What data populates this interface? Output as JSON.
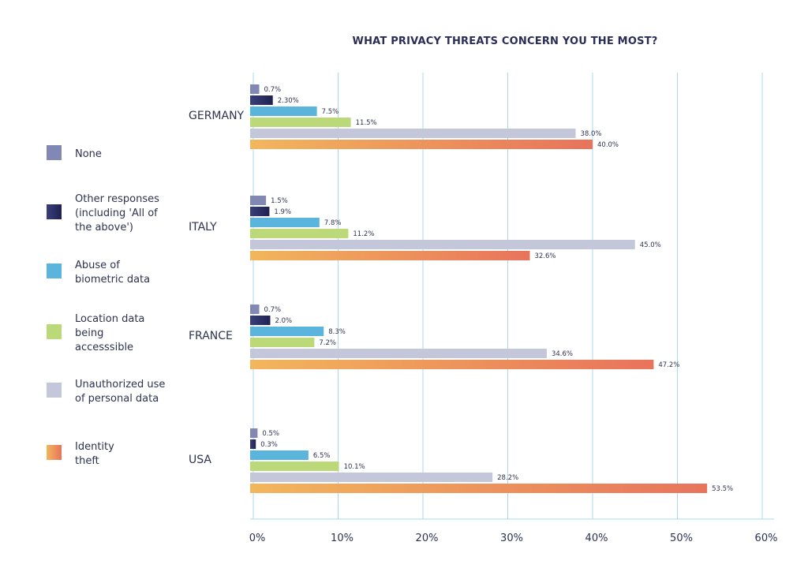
{
  "chart_data": {
    "type": "bar",
    "orientation": "horizontal",
    "title": "WHAT PRIVACY THREATS CONCERN YOU THE MOST?",
    "xlabel": "",
    "ylabel": "",
    "xlim": [
      0,
      60
    ],
    "x_ticks": [
      0,
      10,
      20,
      30,
      40,
      50,
      60
    ],
    "x_tick_labels": [
      "0%",
      "10%",
      "20%",
      "30%",
      "40%",
      "50%",
      "60%"
    ],
    "grid": "vertical",
    "legend_position": "left",
    "categories": [
      "GERMANY",
      "ITALY",
      "FRANCE",
      "USA"
    ],
    "series": [
      {
        "name": "None",
        "legend_lines": [
          "None"
        ],
        "color": "#8088b3",
        "values": [
          0.7,
          1.5,
          0.7,
          0.5
        ],
        "labels": [
          "0.7%",
          "1.5%",
          "0.7%",
          "0.5%"
        ]
      },
      {
        "name": "Other responses (including 'All of the above')",
        "legend_lines": [
          "Other responses",
          "(including 'All of",
          "the above')"
        ],
        "color": "#26295a",
        "values": [
          2.3,
          1.9,
          2.0,
          0.3
        ],
        "labels": [
          "2.30%",
          "1.9%",
          "2.0%",
          "0.3%"
        ]
      },
      {
        "name": "Abuse of biometric data",
        "legend_lines": [
          "Abuse of",
          "biometric data"
        ],
        "color": "#5ab4dc",
        "values": [
          7.5,
          7.8,
          8.3,
          6.5
        ],
        "labels": [
          "7.5%",
          "7.8%",
          "8.3%",
          "6.5%"
        ]
      },
      {
        "name": "Location data being accesssible",
        "legend_lines": [
          "Location data",
          "being",
          "accesssible"
        ],
        "color": "#bcd97a",
        "values": [
          11.5,
          11.2,
          7.2,
          10.1
        ],
        "labels": [
          "11.5%",
          "11.2%",
          "7.2%",
          "10.1%"
        ]
      },
      {
        "name": "Unauthorized use of personal data",
        "legend_lines": [
          "Unauthorized use",
          "of personal data"
        ],
        "color": "#c4c7da",
        "values": [
          38.0,
          45.0,
          34.6,
          28.2
        ],
        "labels": [
          "38.0%",
          "45.0%",
          "34.6%",
          "28.2%"
        ]
      },
      {
        "name": "Identity theft",
        "legend_lines": [
          "Identity",
          "theft"
        ],
        "color": "#f2b65c",
        "color_end": "#e8735c",
        "values": [
          40.0,
          32.6,
          47.2,
          53.5
        ],
        "labels": [
          "40.0%",
          "32.6%",
          "47.2%",
          "53.5%"
        ]
      }
    ]
  }
}
